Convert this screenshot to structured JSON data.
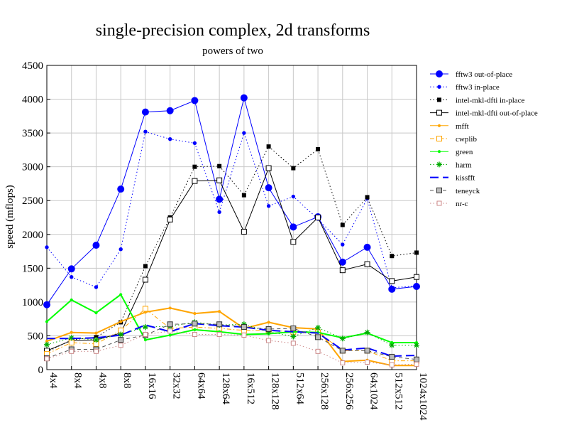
{
  "chart_data": {
    "type": "line",
    "title": "single-precision complex, 2d transforms",
    "subtitle": "powers of two",
    "xlabel": "",
    "ylabel": "speed (mflops)",
    "ylim": [
      0,
      4500
    ],
    "yticks": [
      0,
      500,
      1000,
      1500,
      2000,
      2500,
      3000,
      3500,
      4000,
      4500
    ],
    "grid": true,
    "legend_position": "right",
    "categories": [
      "4x4",
      "8x4",
      "4x8",
      "8x8",
      "16x16",
      "32x32",
      "64x64",
      "128x64",
      "16x512",
      "128x128",
      "512x64",
      "256x128",
      "256x256",
      "64x1024",
      "512x512",
      "1024x1024"
    ],
    "series": [
      {
        "name": "fftw3 out-of-place",
        "color": "#0000ff",
        "dash": "solid",
        "marker": "circle-filled-large",
        "values": [
          960,
          1490,
          1840,
          2670,
          3810,
          3830,
          3980,
          2520,
          4020,
          2690,
          2110,
          2260,
          1590,
          1810,
          1190,
          1230
        ]
      },
      {
        "name": "fftw3 in-place",
        "color": "#0000ff",
        "dash": "dotted",
        "marker": "circle-filled-small",
        "values": [
          1810,
          1370,
          1220,
          1780,
          3520,
          3410,
          3350,
          2330,
          3500,
          2420,
          2560,
          2230,
          1850,
          2530,
          1210,
          1240
        ]
      },
      {
        "name": "intel-mkl-dfti in-place",
        "color": "#000000",
        "dash": "dotted",
        "marker": "square-filled",
        "values": [
          260,
          440,
          480,
          700,
          1530,
          2250,
          3000,
          3010,
          2580,
          3300,
          2980,
          3260,
          2140,
          2550,
          1680,
          1730
        ]
      },
      {
        "name": "intel-mkl-dfti out-of-place",
        "color": "#000000",
        "dash": "solid",
        "marker": "square-open",
        "values": [
          280,
          430,
          440,
          540,
          1330,
          2220,
          2790,
          2800,
          2040,
          2980,
          1890,
          2250,
          1470,
          1560,
          1310,
          1370
        ]
      },
      {
        "name": "mfft",
        "color": "#ffa500",
        "dash": "solid",
        "marker": "dot",
        "values": [
          420,
          550,
          540,
          710,
          850,
          910,
          830,
          860,
          610,
          700,
          620,
          600,
          120,
          140,
          60,
          60
        ]
      },
      {
        "name": "cwplib",
        "color": "#ffa500",
        "dash": "dashdot",
        "marker": "square-open",
        "values": [
          230,
          400,
          380,
          580,
          900,
          610,
          630,
          610,
          580,
          580,
          560,
          550,
          280,
          280,
          130,
          130
        ]
      },
      {
        "name": "green",
        "color": "#00ff00",
        "dash": "solid",
        "marker": "dot",
        "values": [
          710,
          1030,
          840,
          1110,
          440,
          510,
          590,
          560,
          520,
          530,
          560,
          550,
          470,
          540,
          400,
          400
        ]
      },
      {
        "name": "harm",
        "color": "#00aa00",
        "dash": "dotted",
        "marker": "star",
        "values": [
          370,
          470,
          440,
          520,
          630,
          640,
          700,
          660,
          670,
          560,
          490,
          620,
          460,
          550,
          360,
          360
        ]
      },
      {
        "name": "kissfft",
        "color": "#0000ff",
        "dash": "longdash",
        "marker": "none",
        "values": [
          460,
          460,
          470,
          510,
          660,
          560,
          680,
          650,
          630,
          580,
          560,
          540,
          290,
          320,
          200,
          210
        ]
      },
      {
        "name": "teneyck",
        "color": "#555555",
        "dash": "dashed-light",
        "marker": "square-gray",
        "values": [
          170,
          300,
          300,
          440,
          510,
          670,
          680,
          670,
          630,
          600,
          610,
          480,
          280,
          280,
          190,
          150
        ]
      },
      {
        "name": "nr-c",
        "color": "#cc8888",
        "dash": "dotted",
        "marker": "square-open-pink",
        "values": [
          160,
          270,
          270,
          360,
          520,
          570,
          520,
          520,
          510,
          430,
          390,
          270,
          100,
          110,
          70,
          80
        ]
      }
    ]
  }
}
